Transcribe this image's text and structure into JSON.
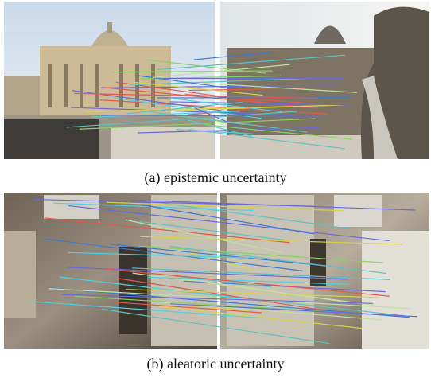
{
  "figure": {
    "panels": [
      {
        "caption": "(a) epistemic uncertainty"
      },
      {
        "caption": "(b) aleatoric uncertainty"
      }
    ]
  }
}
